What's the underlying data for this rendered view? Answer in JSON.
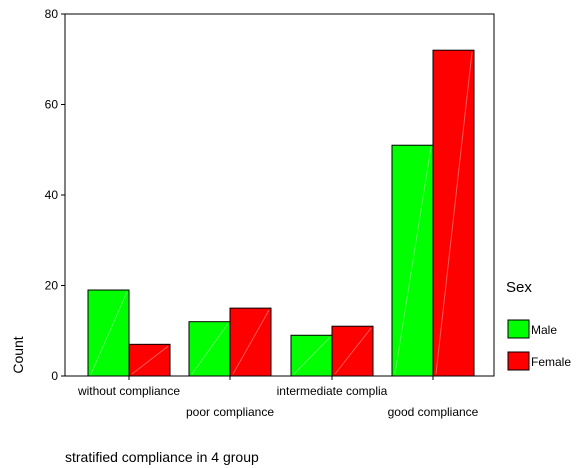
{
  "chart_data": {
    "type": "bar",
    "title": "",
    "xlabel": "stratified compliance in 4 group",
    "ylabel": "Count",
    "ylim": [
      0,
      80
    ],
    "yticks": [
      0,
      20,
      40,
      60,
      80
    ],
    "grid": false,
    "legend": {
      "title": "Sex",
      "placement": "right"
    },
    "categories": [
      "without compliance",
      "poor compliance",
      "intermediate complia",
      "good compliance"
    ],
    "series": [
      {
        "name": "Male",
        "color": "#00ff00",
        "values": [
          19,
          12,
          9,
          51
        ]
      },
      {
        "name": "Female",
        "color": "#ff0000",
        "values": [
          7,
          15,
          11,
          72
        ]
      }
    ]
  }
}
